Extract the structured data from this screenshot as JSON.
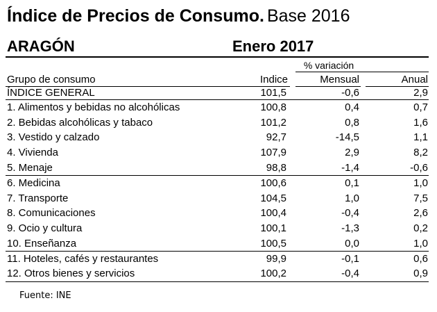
{
  "title": {
    "main": "Índice de Precios de Consumo.",
    "base": "Base 2016"
  },
  "region": "ARAGÓN",
  "period": "Enero 2017",
  "table": {
    "pct_variacion_label": "% variación",
    "headers": {
      "grupo": "Grupo de consumo",
      "indice": "Indice",
      "mensual": "Mensual",
      "anual": "Anual"
    },
    "rows": [
      {
        "label": "ÍNDICE GENERAL",
        "indice": "101,5",
        "mensual": "-0,6",
        "anual": "2,9"
      },
      {
        "label": "1. Alimentos y bebidas no alcohólicas",
        "indice": "100,8",
        "mensual": "0,4",
        "anual": "0,7"
      },
      {
        "label": "2. Bebidas alcohólicas y tabaco",
        "indice": "101,2",
        "mensual": "0,8",
        "anual": "1,6"
      },
      {
        "label": "3. Vestido y calzado",
        "indice": "92,7",
        "mensual": "-14,5",
        "anual": "1,1"
      },
      {
        "label": "4. Vivienda",
        "indice": "107,9",
        "mensual": "2,9",
        "anual": "8,2"
      },
      {
        "label": "5. Menaje",
        "indice": "98,8",
        "mensual": "-1,4",
        "anual": "-0,6"
      },
      {
        "label": "6. Medicina",
        "indice": "100,6",
        "mensual": "0,1",
        "anual": "1,0"
      },
      {
        "label": "7. Transporte",
        "indice": "104,5",
        "mensual": "1,0",
        "anual": "7,5"
      },
      {
        "label": "8. Comunicaciones",
        "indice": "100,4",
        "mensual": "-0,4",
        "anual": "2,6"
      },
      {
        "label": "9. Ocio y cultura",
        "indice": "100,1",
        "mensual": "-1,3",
        "anual": "0,2"
      },
      {
        "label": "10. Enseñanza",
        "indice": "100,5",
        "mensual": "0,0",
        "anual": "1,0"
      },
      {
        "label": "11. Hoteles, cafés y restaurantes",
        "indice": "99,9",
        "mensual": "-0,1",
        "anual": "0,6"
      },
      {
        "label": "12. Otros bienes y servicios",
        "indice": "100,2",
        "mensual": "-0,4",
        "anual": "0,9"
      }
    ]
  },
  "footer": "Fuente: INE"
}
